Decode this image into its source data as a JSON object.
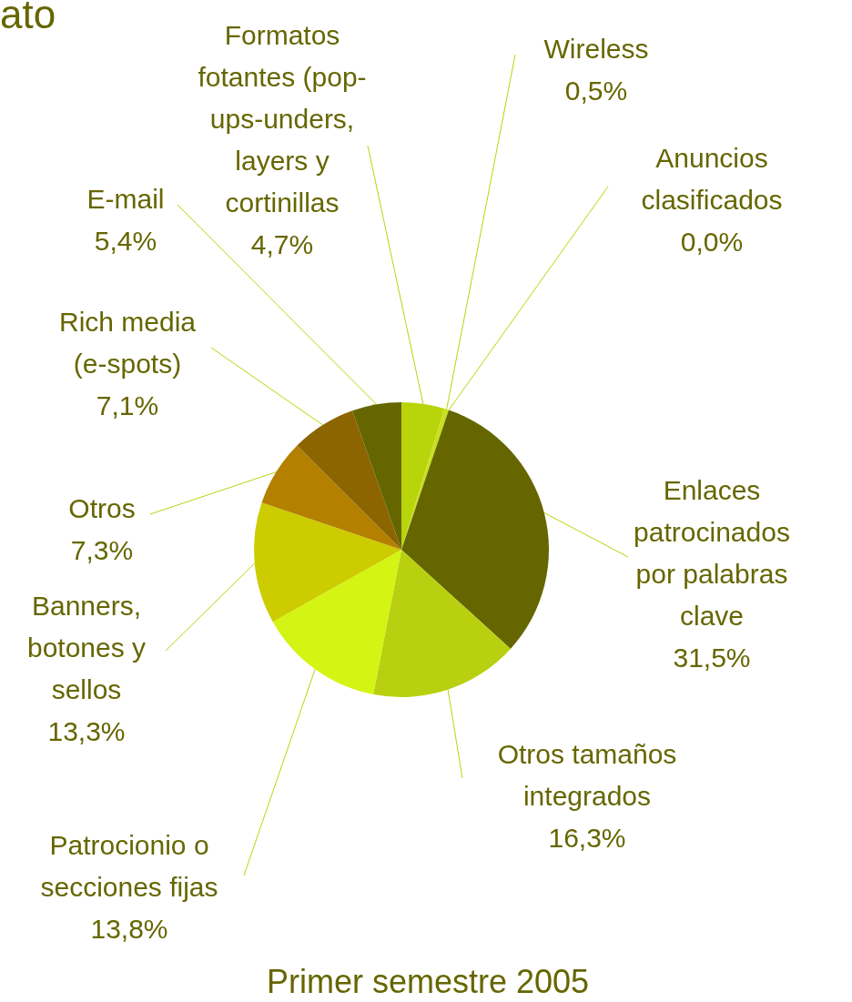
{
  "chart_data": {
    "type": "pie",
    "title": "Primer semestre 2005",
    "annotations": [
      "ato"
    ],
    "categories": [
      "Formatos fotantes (pop-ups-unders, layers y cortinillas",
      "Wireless",
      "Anuncios clasificados",
      "Enlaces patrocinados por palabras clave",
      "Otros tamaños integrados",
      "Patrocionio o secciones fijas",
      "Banners, botones y sellos",
      "Otros",
      "Rich media (e-spots)",
      "E-mail"
    ],
    "values": [
      4.7,
      0.5,
      0.0,
      31.5,
      16.3,
      13.8,
      13.3,
      7.3,
      7.1,
      5.4
    ],
    "value_labels": [
      "4,7%",
      "0,5%",
      "0,0%",
      "31,5%",
      "16,3%",
      "13,8%",
      "13,3%",
      "7,3%",
      "7,1%",
      "5,4%"
    ],
    "colors": [
      "#b8d40a",
      "#c8e01e",
      "#c8e01e",
      "#666600",
      "#b8d010",
      "#d4f414",
      "#cccc00",
      "#b38000",
      "#8c6400",
      "#666600"
    ]
  }
}
